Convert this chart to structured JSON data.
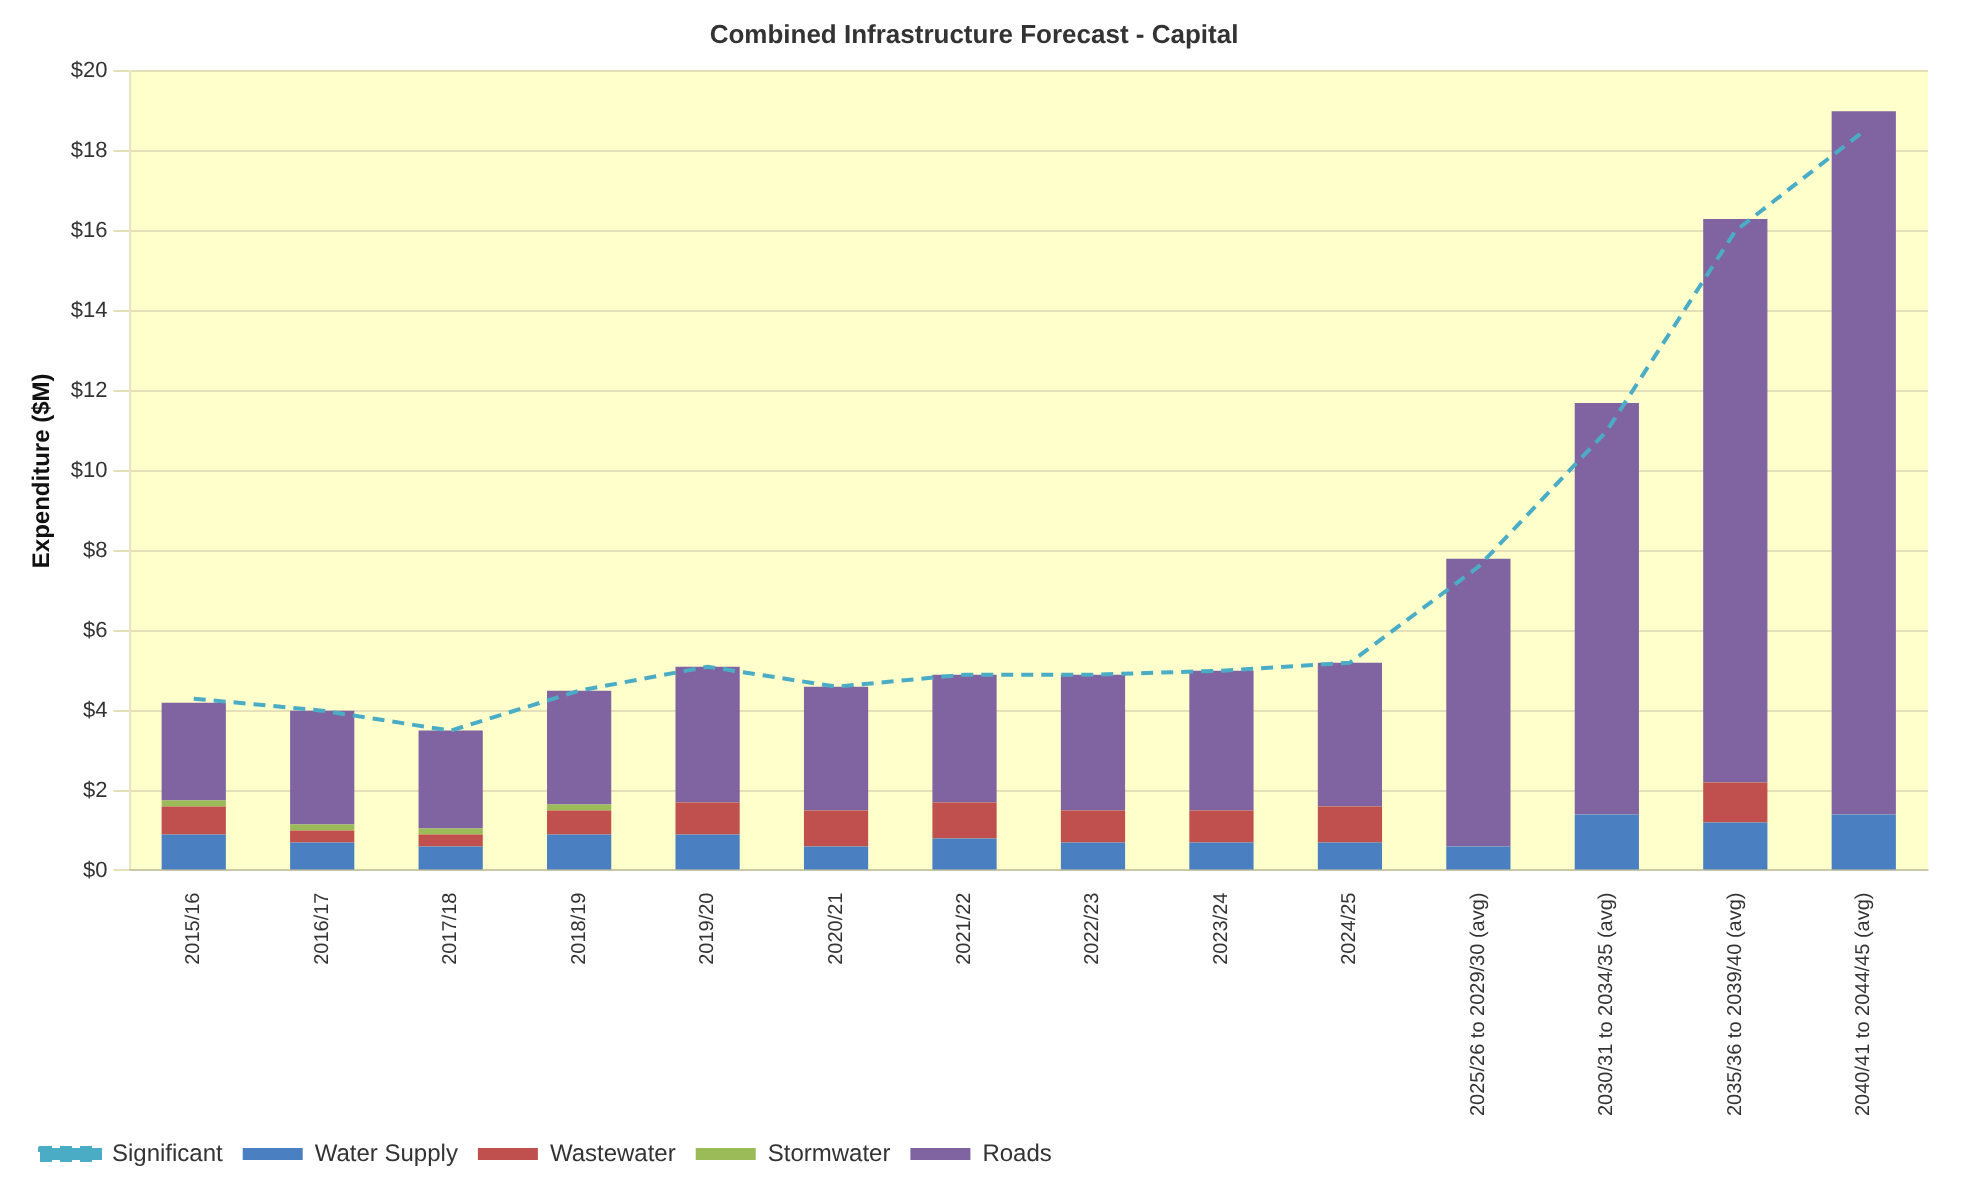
{
  "chart_data": {
    "type": "bar",
    "stacked": true,
    "title": "Combined Infrastructure Forecast - Capital",
    "ylabel": "Expenditure ($M)",
    "categories": [
      "2015/16",
      "2016/17",
      "2017/18",
      "2018/19",
      "2019/20",
      "2020/21",
      "2021/22",
      "2022/23",
      "2023/24",
      "2024/25",
      "2025/26 to 2029/30 (avg)",
      "2030/31 to 2034/35 (avg)",
      "2035/36 to 2039/40 (avg)",
      "2040/41 to 2044/45 (avg)"
    ],
    "series": [
      {
        "name": "Water Supply",
        "color": "#4a7fc1",
        "values": [
          0.9,
          0.7,
          0.6,
          0.9,
          0.9,
          0.6,
          0.8,
          0.7,
          0.7,
          0.7,
          0.6,
          1.4,
          1.2,
          1.4
        ]
      },
      {
        "name": "Wastewater",
        "color": "#c0504d",
        "values": [
          0.7,
          0.3,
          0.3,
          0.6,
          0.8,
          0.9,
          0.9,
          0.8,
          0.8,
          0.9,
          0,
          0,
          1.0,
          0
        ]
      },
      {
        "name": "Stormwater",
        "color": "#9bbb59",
        "values": [
          0.15,
          0.15,
          0.15,
          0.15,
          0,
          0,
          0,
          0,
          0,
          0,
          0,
          0,
          0,
          0
        ]
      },
      {
        "name": "Roads",
        "color": "#8064a2",
        "values": [
          2.45,
          2.85,
          2.45,
          2.85,
          3.4,
          3.1,
          3.2,
          3.4,
          3.5,
          3.6,
          7.2,
          10.3,
          14.1,
          17.6
        ]
      },
      {
        "name": "Significant",
        "type": "line",
        "color": "#4bacc6",
        "line_style": "dashed",
        "marker": "none",
        "values": [
          4.3,
          4.0,
          3.5,
          4.5,
          5.1,
          4.6,
          4.9,
          4.9,
          5.0,
          5.2,
          7.6,
          11.0,
          16.0,
          18.5
        ]
      }
    ],
    "ylim": [
      0,
      20
    ],
    "yticks": [
      {
        "value": 0,
        "label": "$0"
      },
      {
        "value": 2,
        "label": "$2"
      },
      {
        "value": 4,
        "label": "$4"
      },
      {
        "value": 6,
        "label": "$6"
      },
      {
        "value": 8,
        "label": "$8"
      },
      {
        "value": 10,
        "label": "$10"
      },
      {
        "value": 12,
        "label": "$12"
      },
      {
        "value": 14,
        "label": "$14"
      },
      {
        "value": 16,
        "label": "$16"
      },
      {
        "value": 18,
        "label": "$18"
      },
      {
        "value": 20,
        "label": "$20"
      }
    ],
    "grid": "y",
    "legend": "bottom left"
  }
}
